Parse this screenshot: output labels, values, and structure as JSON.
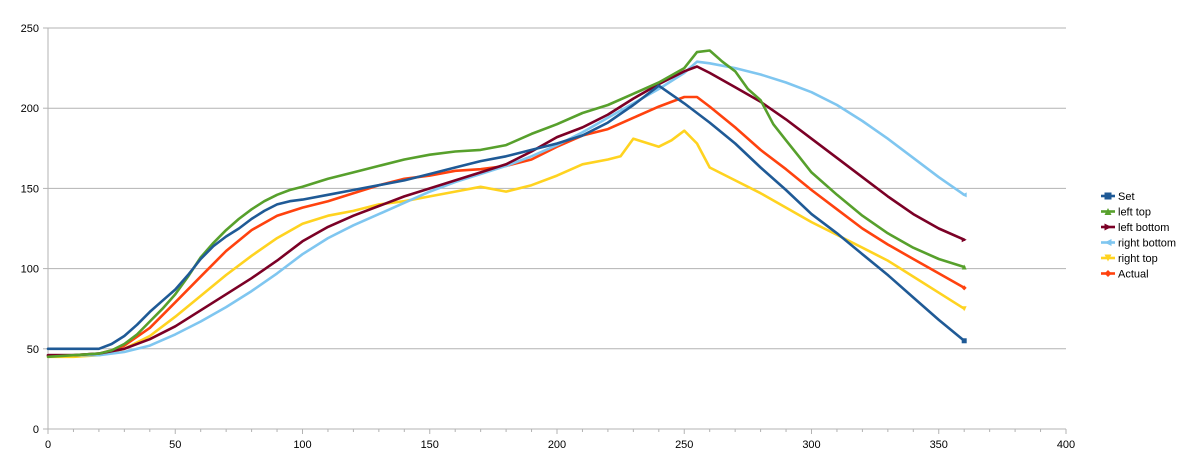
{
  "chart_data": {
    "type": "line",
    "title": "",
    "xlabel": "",
    "ylabel": "",
    "xlim": [
      0,
      400
    ],
    "ylim": [
      0,
      250
    ],
    "x_ticks": [
      0,
      50,
      100,
      150,
      200,
      250,
      300,
      350,
      400
    ],
    "y_ticks": [
      0,
      50,
      100,
      150,
      200,
      250
    ],
    "grid": "horizontal",
    "legend_position": "right",
    "series": [
      {
        "name": "Set",
        "color": "#1f5a96",
        "marker": "square",
        "points": [
          [
            0,
            50
          ],
          [
            10,
            50
          ],
          [
            20,
            50
          ],
          [
            25,
            53
          ],
          [
            30,
            58
          ],
          [
            35,
            65
          ],
          [
            40,
            73
          ],
          [
            45,
            80
          ],
          [
            50,
            87
          ],
          [
            55,
            96
          ],
          [
            60,
            106
          ],
          [
            65,
            114
          ],
          [
            70,
            120
          ],
          [
            75,
            125
          ],
          [
            80,
            131
          ],
          [
            85,
            136
          ],
          [
            90,
            140
          ],
          [
            95,
            142
          ],
          [
            100,
            143
          ],
          [
            110,
            146
          ],
          [
            120,
            149
          ],
          [
            130,
            152
          ],
          [
            140,
            155
          ],
          [
            150,
            159
          ],
          [
            160,
            163
          ],
          [
            170,
            167
          ],
          [
            180,
            170
          ],
          [
            190,
            174
          ],
          [
            200,
            178
          ],
          [
            210,
            183
          ],
          [
            220,
            191
          ],
          [
            230,
            202
          ],
          [
            240,
            214
          ],
          [
            250,
            203
          ],
          [
            260,
            191
          ],
          [
            270,
            178
          ],
          [
            280,
            163
          ],
          [
            290,
            149
          ],
          [
            300,
            134
          ],
          [
            310,
            122
          ],
          [
            320,
            109
          ],
          [
            330,
            96
          ],
          [
            340,
            82
          ],
          [
            350,
            68
          ],
          [
            360,
            55
          ]
        ]
      },
      {
        "name": "left top",
        "color": "#57a02c",
        "marker": "triangle-up",
        "points": [
          [
            0,
            45
          ],
          [
            10,
            46
          ],
          [
            20,
            47
          ],
          [
            25,
            49
          ],
          [
            30,
            53
          ],
          [
            35,
            59
          ],
          [
            40,
            67
          ],
          [
            45,
            75
          ],
          [
            50,
            84
          ],
          [
            55,
            95
          ],
          [
            60,
            107
          ],
          [
            65,
            116
          ],
          [
            70,
            124
          ],
          [
            75,
            131
          ],
          [
            80,
            137
          ],
          [
            85,
            142
          ],
          [
            90,
            146
          ],
          [
            95,
            149
          ],
          [
            100,
            151
          ],
          [
            110,
            156
          ],
          [
            120,
            160
          ],
          [
            130,
            164
          ],
          [
            140,
            168
          ],
          [
            150,
            171
          ],
          [
            160,
            173
          ],
          [
            170,
            174
          ],
          [
            180,
            177
          ],
          [
            190,
            184
          ],
          [
            200,
            190
          ],
          [
            210,
            197
          ],
          [
            220,
            202
          ],
          [
            230,
            209
          ],
          [
            240,
            216
          ],
          [
            250,
            225
          ],
          [
            255,
            235
          ],
          [
            260,
            236
          ],
          [
            265,
            229
          ],
          [
            270,
            223
          ],
          [
            275,
            212
          ],
          [
            280,
            205
          ],
          [
            285,
            190
          ],
          [
            290,
            180
          ],
          [
            295,
            170
          ],
          [
            300,
            160
          ],
          [
            310,
            146
          ],
          [
            320,
            133
          ],
          [
            330,
            122
          ],
          [
            340,
            113
          ],
          [
            350,
            106
          ],
          [
            360,
            101
          ]
        ]
      },
      {
        "name": "left bottom",
        "color": "#7b0026",
        "marker": "triangle-right",
        "points": [
          [
            0,
            46
          ],
          [
            10,
            46
          ],
          [
            20,
            47
          ],
          [
            30,
            50
          ],
          [
            40,
            56
          ],
          [
            50,
            64
          ],
          [
            60,
            74
          ],
          [
            70,
            84
          ],
          [
            80,
            94
          ],
          [
            90,
            105
          ],
          [
            100,
            117
          ],
          [
            110,
            126
          ],
          [
            120,
            133
          ],
          [
            130,
            139
          ],
          [
            140,
            145
          ],
          [
            150,
            150
          ],
          [
            160,
            155
          ],
          [
            170,
            160
          ],
          [
            180,
            165
          ],
          [
            190,
            173
          ],
          [
            200,
            182
          ],
          [
            210,
            188
          ],
          [
            220,
            196
          ],
          [
            230,
            206
          ],
          [
            240,
            215
          ],
          [
            250,
            223
          ],
          [
            255,
            226
          ],
          [
            260,
            222
          ],
          [
            270,
            213
          ],
          [
            280,
            204
          ],
          [
            290,
            193
          ],
          [
            300,
            181
          ],
          [
            310,
            169
          ],
          [
            320,
            157
          ],
          [
            330,
            145
          ],
          [
            340,
            134
          ],
          [
            350,
            125
          ],
          [
            360,
            118
          ]
        ]
      },
      {
        "name": "right bottom",
        "color": "#7fc6f0",
        "marker": "triangle-left",
        "points": [
          [
            0,
            46
          ],
          [
            10,
            46
          ],
          [
            20,
            46
          ],
          [
            30,
            48
          ],
          [
            40,
            52
          ],
          [
            50,
            59
          ],
          [
            60,
            67
          ],
          [
            70,
            76
          ],
          [
            80,
            86
          ],
          [
            90,
            97
          ],
          [
            100,
            109
          ],
          [
            110,
            119
          ],
          [
            120,
            127
          ],
          [
            130,
            134
          ],
          [
            140,
            141
          ],
          [
            150,
            148
          ],
          [
            160,
            154
          ],
          [
            170,
            159
          ],
          [
            180,
            164
          ],
          [
            190,
            170
          ],
          [
            200,
            177
          ],
          [
            210,
            185
          ],
          [
            220,
            194
          ],
          [
            230,
            203
          ],
          [
            240,
            212
          ],
          [
            250,
            222
          ],
          [
            255,
            229
          ],
          [
            260,
            228
          ],
          [
            270,
            225
          ],
          [
            280,
            221
          ],
          [
            290,
            216
          ],
          [
            300,
            210
          ],
          [
            310,
            202
          ],
          [
            320,
            192
          ],
          [
            330,
            181
          ],
          [
            340,
            169
          ],
          [
            350,
            157
          ],
          [
            360,
            146
          ]
        ]
      },
      {
        "name": "right top",
        "color": "#ffd320",
        "marker": "triangle-down",
        "points": [
          [
            0,
            45
          ],
          [
            10,
            45
          ],
          [
            20,
            46
          ],
          [
            25,
            48
          ],
          [
            30,
            50
          ],
          [
            40,
            58
          ],
          [
            50,
            70
          ],
          [
            60,
            83
          ],
          [
            70,
            96
          ],
          [
            80,
            108
          ],
          [
            90,
            119
          ],
          [
            100,
            128
          ],
          [
            110,
            133
          ],
          [
            120,
            136
          ],
          [
            130,
            140
          ],
          [
            140,
            142
          ],
          [
            150,
            145
          ],
          [
            160,
            148
          ],
          [
            170,
            151
          ],
          [
            180,
            148
          ],
          [
            190,
            152
          ],
          [
            200,
            158
          ],
          [
            210,
            165
          ],
          [
            220,
            168
          ],
          [
            225,
            170
          ],
          [
            230,
            181
          ],
          [
            240,
            176
          ],
          [
            245,
            180
          ],
          [
            250,
            186
          ],
          [
            255,
            178
          ],
          [
            260,
            163
          ],
          [
            270,
            155
          ],
          [
            280,
            147
          ],
          [
            290,
            138
          ],
          [
            300,
            129
          ],
          [
            310,
            121
          ],
          [
            320,
            113
          ],
          [
            330,
            105
          ],
          [
            340,
            95
          ],
          [
            350,
            85
          ],
          [
            360,
            75
          ]
        ]
      },
      {
        "name": "Actual",
        "color": "#ff420e",
        "marker": "diamond",
        "points": [
          [
            0,
            46
          ],
          [
            10,
            46
          ],
          [
            20,
            47
          ],
          [
            25,
            49
          ],
          [
            30,
            52
          ],
          [
            40,
            63
          ],
          [
            50,
            79
          ],
          [
            60,
            95
          ],
          [
            70,
            111
          ],
          [
            80,
            124
          ],
          [
            90,
            133
          ],
          [
            100,
            138
          ],
          [
            110,
            142
          ],
          [
            120,
            147
          ],
          [
            130,
            152
          ],
          [
            140,
            156
          ],
          [
            150,
            158
          ],
          [
            160,
            161
          ],
          [
            170,
            162
          ],
          [
            180,
            164
          ],
          [
            190,
            168
          ],
          [
            200,
            176
          ],
          [
            210,
            183
          ],
          [
            220,
            187
          ],
          [
            230,
            194
          ],
          [
            240,
            201
          ],
          [
            250,
            207
          ],
          [
            255,
            207
          ],
          [
            260,
            201
          ],
          [
            270,
            188
          ],
          [
            280,
            174
          ],
          [
            290,
            162
          ],
          [
            300,
            149
          ],
          [
            310,
            137
          ],
          [
            320,
            125
          ],
          [
            330,
            115
          ],
          [
            340,
            106
          ],
          [
            350,
            97
          ],
          [
            360,
            88
          ]
        ]
      }
    ]
  }
}
